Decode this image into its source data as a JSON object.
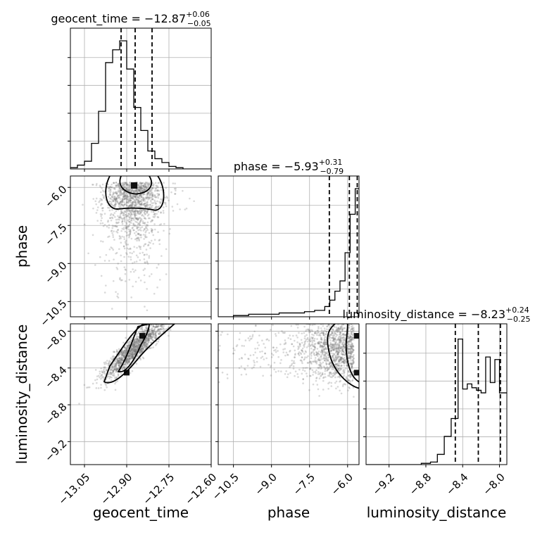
{
  "chart_data": {
    "type": "corner",
    "parameters": [
      "geocent_time",
      "phase",
      "luminosity_distance"
    ],
    "grid": true,
    "diagonal": [
      {
        "parameter": "geocent_time",
        "title": {
          "prefix": "geocent_time = ",
          "median": "−12.87",
          "plus": "+0.06",
          "minus": "−0.05"
        },
        "xlim": [
          -13.1,
          -12.6
        ],
        "quantiles": [
          -12.92,
          -12.87,
          -12.81
        ],
        "hist": {
          "edges": [
            -13.1,
            -13.075,
            -13.05,
            -13.025,
            -13.0,
            -12.975,
            -12.95,
            -12.925,
            -12.9,
            -12.875,
            -12.85,
            -12.825,
            -12.8,
            -12.775,
            -12.75,
            -12.725,
            -12.7,
            -12.675,
            -12.65,
            -12.625,
            -12.6
          ],
          "counts": [
            0.01,
            0.03,
            0.06,
            0.2,
            0.45,
            0.83,
            0.93,
            1.0,
            0.78,
            0.48,
            0.3,
            0.14,
            0.08,
            0.05,
            0.02,
            0.01,
            0.0,
            0.0,
            0.0,
            0.0
          ]
        }
      },
      {
        "parameter": "phase",
        "title": {
          "prefix": "phase = ",
          "median": "−5.93",
          "plus": "+0.31",
          "minus": "−0.79"
        },
        "xlim": [
          -11.1,
          -5.55
        ],
        "quantiles": [
          -6.72,
          -5.93,
          -5.62
        ],
        "hist": {
          "edges": [
            -11.1,
            -10.9,
            -10.7,
            -10.5,
            -10.3,
            -10.1,
            -9.9,
            -9.7,
            -9.5,
            -9.3,
            -9.1,
            -8.9,
            -8.7,
            -8.5,
            -8.3,
            -8.1,
            -7.9,
            -7.7,
            -7.5,
            -7.3,
            -7.1,
            -6.9,
            -6.7,
            -6.5,
            -6.3,
            -6.1,
            -5.9,
            -5.7,
            -5.55
          ],
          "counts": [
            0.0,
            0.0,
            0.0,
            0.01,
            0.01,
            0.01,
            0.02,
            0.02,
            0.02,
            0.02,
            0.02,
            0.02,
            0.03,
            0.03,
            0.03,
            0.03,
            0.03,
            0.04,
            0.04,
            0.05,
            0.05,
            0.08,
            0.13,
            0.2,
            0.28,
            0.5,
            0.8,
            1.0
          ]
        }
      },
      {
        "parameter": "luminosity_distance",
        "title": {
          "prefix": "luminosity_distance = ",
          "median": "−8.23",
          "plus": "+0.24",
          "minus": "−0.25"
        },
        "xlim": [
          -9.45,
          -7.92
        ],
        "quantiles": [
          -8.48,
          -8.23,
          -7.99
        ],
        "hist": {
          "edges": [
            -9.45,
            -9.3,
            -9.15,
            -9.0,
            -8.85,
            -8.75,
            -8.675,
            -8.6,
            -8.525,
            -8.45,
            -8.4,
            -8.35,
            -8.3,
            -8.25,
            -8.2,
            -8.15,
            -8.1,
            -8.05,
            -8.0,
            -7.97,
            -7.92
          ],
          "counts": [
            0.0,
            0.0,
            0.0,
            0.0,
            0.01,
            0.02,
            0.08,
            0.22,
            0.36,
            0.98,
            0.59,
            0.63,
            0.6,
            0.58,
            0.56,
            0.84,
            0.64,
            0.82,
            0.56,
            0.56
          ]
        }
      }
    ],
    "panels_2d": [
      {
        "x": "geocent_time",
        "y": "phase",
        "xlim": [
          -13.1,
          -12.6
        ],
        "ylim": [
          -11.1,
          -5.55
        ]
      },
      {
        "x": "geocent_time",
        "y": "luminosity_distance",
        "xlim": [
          -13.1,
          -12.6
        ],
        "ylim": [
          -9.45,
          -7.92
        ]
      },
      {
        "x": "phase",
        "y": "luminosity_distance",
        "xlim": [
          -11.1,
          -5.55
        ],
        "ylim": [
          -9.45,
          -7.92
        ]
      }
    ],
    "ticks": {
      "geocent_time": [
        "−13.05",
        "−12.90",
        "−12.75",
        "−12.60"
      ],
      "phase": [
        "−10.5",
        "−9.0",
        "−7.5",
        "−6.0"
      ],
      "luminosity_distance": [
        "−9.2",
        "−8.8",
        "−8.4",
        "−8.0"
      ]
    },
    "tick_values": {
      "geocent_time": [
        -13.05,
        -12.9,
        -12.75,
        -12.6
      ],
      "phase": [
        -10.5,
        -9.0,
        -7.5,
        -6.0
      ],
      "luminosity_distance": [
        -9.2,
        -8.8,
        -8.4,
        -8.0
      ]
    },
    "axis_labels": {
      "x": [
        "geocent_time",
        "phase",
        "luminosity_distance"
      ],
      "y": [
        "phase",
        "luminosity_distance"
      ]
    }
  }
}
